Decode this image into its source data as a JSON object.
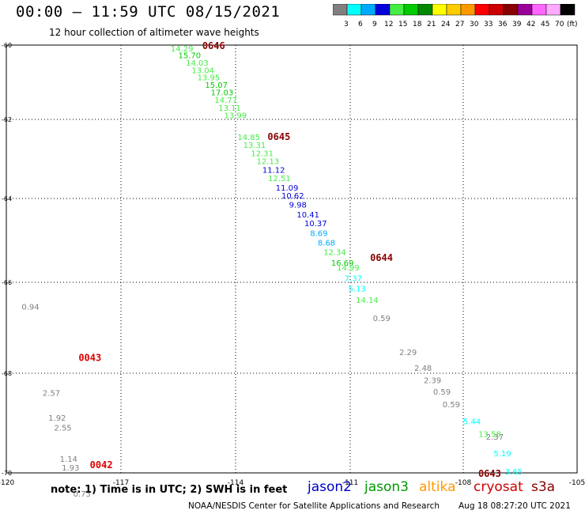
{
  "header": {
    "title": "00:00 — 11:59 UTC 08/15/2021",
    "subtitle": "12 hour collection of altimeter wave heights"
  },
  "colorbar": {
    "labels": [
      "3",
      "6",
      "9",
      "12",
      "15",
      "18",
      "21",
      "24",
      "27",
      "30",
      "33",
      "36",
      "39",
      "42",
      "45",
      "70"
    ],
    "unit": "(ft)",
    "colors": [
      "#808080",
      "#00ffff",
      "#00aaff",
      "#0000dd",
      "#44ee44",
      "#00cc00",
      "#008800",
      "#ffff00",
      "#ffcc00",
      "#ff9900",
      "#ff0000",
      "#cc0000",
      "#880000",
      "#990099",
      "#ff66ff",
      "#ffaaff",
      "#000000"
    ]
  },
  "axes": {
    "lat_labels": [
      "-60",
      "-62",
      "-64",
      "-66",
      "-68",
      "-70"
    ],
    "lon_labels": [
      "-120",
      "-117",
      "-114",
      "-111",
      "-108",
      "-105"
    ]
  },
  "footer": {
    "note": "note: 1) Time is in UTC; 2) SWH is in feet",
    "satellites": [
      {
        "name": "jason2",
        "color": "#0000cc"
      },
      {
        "name": "jason3",
        "color": "#009900"
      },
      {
        "name": "altika",
        "color": "#ff9900"
      },
      {
        "name": "cryosat",
        "color": "#cc0000"
      },
      {
        "name": "s3a",
        "color": "#880000"
      }
    ],
    "credit_left": "NOAA/NESDIS Center for Satellite Applications and Research",
    "credit_right": "Aug 18 08:27:20 UTC 2021"
  },
  "chart_data": {
    "type": "scatter",
    "title": "00:00 — 11:59 UTC 08/15/2021",
    "subtitle": "12 hour collection of altimeter wave heights",
    "lat_ticks": [
      -60,
      -62,
      -64,
      -66,
      -68,
      -70
    ],
    "lon_ticks": [
      -120,
      -117,
      -114,
      -111,
      -108,
      -105
    ],
    "tracks": [
      {
        "pass_label": "0646",
        "satellite": "s3a",
        "points": [
          {
            "lat": -60.17,
            "lon": -115.7,
            "swh": 14.29,
            "color": "#44ee44"
          },
          {
            "lat": -60.35,
            "lon": -115.5,
            "swh": 15.7,
            "color": "#00cc00"
          },
          {
            "lat": -60.55,
            "lon": -115.3,
            "swh": 14.03,
            "color": "#44ee44"
          },
          {
            "lat": -60.75,
            "lon": -115.15,
            "swh": 13.04,
            "color": "#44ee44"
          },
          {
            "lat": -60.95,
            "lon": -115.0,
            "swh": 13.95,
            "color": "#44ee44"
          },
          {
            "lat": -61.15,
            "lon": -114.8,
            "swh": 15.07,
            "color": "#00cc00"
          },
          {
            "lat": -61.35,
            "lon": -114.65,
            "swh": 17.03,
            "color": "#00cc00"
          },
          {
            "lat": -61.55,
            "lon": -114.55,
            "swh": 14.77,
            "color": "#44ee44"
          },
          {
            "lat": -61.77,
            "lon": -114.45,
            "swh": 13.11,
            "color": "#44ee44"
          },
          {
            "lat": -61.97,
            "lon": -114.3,
            "swh": 13.99,
            "color": "#44ee44"
          }
        ]
      },
      {
        "pass_label": "0645",
        "satellite": "s3a",
        "points": [
          {
            "lat": -62.52,
            "lon": -113.95,
            "swh": 14.85,
            "color": "#44ee44"
          },
          {
            "lat": -62.72,
            "lon": -113.8,
            "swh": 13.31,
            "color": "#44ee44"
          },
          {
            "lat": -62.93,
            "lon": -113.6,
            "swh": 12.31,
            "color": "#44ee44"
          },
          {
            "lat": -63.13,
            "lon": -113.45,
            "swh": 12.13,
            "color": "#44ee44"
          },
          {
            "lat": -63.35,
            "lon": -113.3,
            "swh": 11.12,
            "color": "#0000dd"
          },
          {
            "lat": -63.56,
            "lon": -113.15,
            "swh": 12.51,
            "color": "#44ee44"
          },
          {
            "lat": -63.8,
            "lon": -112.95,
            "swh": 11.09,
            "color": "#0000dd"
          },
          {
            "lat": -64.0,
            "lon": -112.8,
            "swh": 10.62,
            "color": "#0000dd"
          },
          {
            "lat": -64.22,
            "lon": -112.6,
            "swh": 9.98,
            "color": "#0000dd"
          },
          {
            "lat": -64.45,
            "lon": -112.4,
            "swh": 10.41,
            "color": "#0000dd"
          },
          {
            "lat": -64.66,
            "lon": -112.2,
            "swh": 10.37,
            "color": "#0000dd"
          },
          {
            "lat": -64.9,
            "lon": -112.05,
            "swh": 8.69,
            "color": "#00aaff"
          },
          {
            "lat": -65.12,
            "lon": -111.85,
            "swh": 8.68,
            "color": "#00aaff"
          },
          {
            "lat": -65.35,
            "lon": -111.7,
            "swh": 12.34,
            "color": "#44ee44"
          },
          {
            "lat": -65.6,
            "lon": -111.5,
            "swh": 16.69,
            "color": "#00cc00"
          }
        ]
      },
      {
        "pass_label": "0644",
        "satellite": "s3a",
        "points": [
          {
            "lat": -65.72,
            "lon": -111.35,
            "swh": 14.99,
            "color": "#44ee44"
          },
          {
            "lat": -65.97,
            "lon": -111.15,
            "swh": 7.37,
            "color": "#00ffff"
          },
          {
            "lat": -66.2,
            "lon": -111.05,
            "swh": 5.13,
            "color": "#00ffff"
          },
          {
            "lat": -66.45,
            "lon": -110.85,
            "swh": 14.14,
            "color": "#44ee44"
          },
          {
            "lat": -66.85,
            "lon": -110.4,
            "swh": 0.59,
            "color": "#808080"
          }
        ]
      },
      {
        "pass_label": "0643",
        "satellite": "s3a",
        "points": [
          {
            "lat": -67.6,
            "lon": -109.7,
            "swh": 2.29,
            "color": "#808080"
          },
          {
            "lat": -67.95,
            "lon": -109.3,
            "swh": 2.48,
            "color": "#808080"
          },
          {
            "lat": -68.2,
            "lon": -109.05,
            "swh": 2.39,
            "color": "#808080"
          },
          {
            "lat": -68.43,
            "lon": -108.8,
            "swh": 0.59,
            "color": "#808080"
          },
          {
            "lat": -68.68,
            "lon": -108.55,
            "swh": 0.59,
            "color": "#808080"
          },
          {
            "lat": -69.02,
            "lon": -108.0,
            "swh": 5.44,
            "color": "#00ffff"
          },
          {
            "lat": -69.28,
            "lon": -107.6,
            "swh": 13.58,
            "color": "#44ee44"
          },
          {
            "lat": -69.33,
            "lon": -107.4,
            "swh": 2.37,
            "color": "#808080"
          },
          {
            "lat": -69.67,
            "lon": -107.2,
            "swh": 5.19,
            "color": "#00ffff"
          },
          {
            "lat": -70.03,
            "lon": -106.9,
            "swh": 3.65,
            "color": "#00ffff"
          }
        ]
      },
      {
        "pass_label": "0043",
        "satellite": "cryosat",
        "points": [
          {
            "lat": -66.6,
            "lon": -119.6,
            "swh": 0.94,
            "color": "#808080"
          },
          {
            "lat": -68.45,
            "lon": -119.05,
            "swh": 2.57,
            "color": "#808080"
          },
          {
            "lat": -68.95,
            "lon": -118.9,
            "swh": 1.92,
            "color": "#808080"
          },
          {
            "lat": -69.15,
            "lon": -118.75,
            "swh": 2.55,
            "color": "#808080"
          }
        ]
      },
      {
        "pass_label": "0042",
        "satellite": "cryosat",
        "points": [
          {
            "lat": -69.78,
            "lon": -118.6,
            "swh": 1.14,
            "color": "#808080"
          },
          {
            "lat": -69.95,
            "lon": -118.55,
            "swh": 1.93,
            "color": "#808080"
          },
          {
            "lat": -70.48,
            "lon": -118.25,
            "swh": 0.73,
            "color": "#808080"
          }
        ]
      }
    ]
  }
}
